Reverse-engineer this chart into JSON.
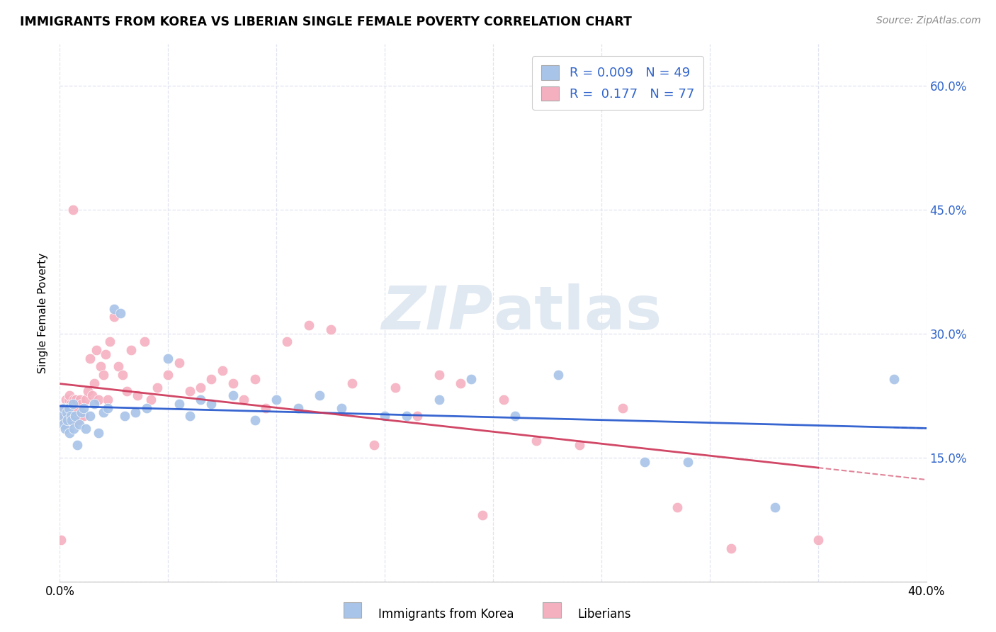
{
  "title": "IMMIGRANTS FROM KOREA VS LIBERIAN SINGLE FEMALE POVERTY CORRELATION CHART",
  "source": "Source: ZipAtlas.com",
  "ylabel": "Single Female Poverty",
  "legend_label_korea": "Immigrants from Korea",
  "legend_label_liberia": "Liberians",
  "korea_R": "0.009",
  "korea_N": "49",
  "liberia_R": "0.177",
  "liberia_N": "77",
  "korea_color": "#a8c4e8",
  "liberia_color": "#f5b0c0",
  "korea_trend_color": "#2255cc",
  "liberia_trend_color": "#cc3355",
  "liberia_trend_dashed_color": "#ddaacc",
  "watermark_color": "#c8d8e8",
  "xlim": [
    0.0,
    40.0
  ],
  "ylim": [
    0.0,
    65.0
  ],
  "yticks": [
    0,
    15,
    30,
    45,
    60
  ],
  "grid_color": "#e0e4f0",
  "background_color": "#ffffff",
  "korea_x": [
    0.1,
    0.15,
    0.2,
    0.25,
    0.3,
    0.35,
    0.4,
    0.45,
    0.5,
    0.55,
    0.6,
    0.65,
    0.7,
    0.8,
    0.9,
    1.0,
    1.1,
    1.2,
    1.4,
    1.6,
    1.8,
    2.0,
    2.2,
    2.5,
    2.8,
    3.0,
    3.5,
    4.0,
    5.0,
    5.5,
    6.0,
    6.5,
    7.0,
    8.0,
    9.0,
    10.0,
    11.0,
    12.0,
    13.0,
    15.0,
    16.0,
    17.5,
    19.0,
    21.0,
    23.0,
    27.0,
    29.0,
    33.0,
    38.5
  ],
  "korea_y": [
    20.0,
    19.0,
    21.0,
    18.5,
    20.5,
    19.5,
    21.0,
    18.0,
    20.0,
    19.5,
    21.5,
    18.5,
    20.0,
    16.5,
    19.0,
    20.5,
    21.0,
    18.5,
    20.0,
    21.5,
    18.0,
    20.5,
    21.0,
    33.0,
    32.5,
    20.0,
    20.5,
    21.0,
    27.0,
    21.5,
    20.0,
    22.0,
    21.5,
    22.5,
    19.5,
    22.0,
    21.0,
    22.5,
    21.0,
    20.0,
    20.0,
    22.0,
    24.5,
    20.0,
    25.0,
    14.5,
    14.5,
    9.0,
    24.5
  ],
  "liberia_x": [
    0.05,
    0.1,
    0.12,
    0.15,
    0.18,
    0.2,
    0.22,
    0.25,
    0.28,
    0.3,
    0.32,
    0.35,
    0.38,
    0.4,
    0.42,
    0.45,
    0.48,
    0.5,
    0.55,
    0.6,
    0.65,
    0.7,
    0.75,
    0.8,
    0.85,
    0.9,
    0.95,
    1.0,
    1.1,
    1.2,
    1.3,
    1.4,
    1.5,
    1.6,
    1.7,
    1.8,
    1.9,
    2.0,
    2.1,
    2.2,
    2.3,
    2.5,
    2.7,
    2.9,
    3.1,
    3.3,
    3.6,
    3.9,
    4.2,
    4.5,
    5.0,
    5.5,
    6.0,
    6.5,
    7.0,
    7.5,
    8.0,
    8.5,
    9.0,
    9.5,
    10.5,
    11.5,
    12.5,
    13.5,
    14.5,
    15.5,
    16.5,
    17.5,
    18.5,
    19.5,
    20.5,
    22.0,
    24.0,
    26.0,
    28.5,
    31.0,
    35.0
  ],
  "liberia_y": [
    5.0,
    20.0,
    21.0,
    19.5,
    20.5,
    21.0,
    20.0,
    19.5,
    22.0,
    20.5,
    21.0,
    19.0,
    20.5,
    22.0,
    21.0,
    22.5,
    20.0,
    21.5,
    20.0,
    45.0,
    22.0,
    20.5,
    22.0,
    21.0,
    19.5,
    20.0,
    22.0,
    21.5,
    20.0,
    22.0,
    23.0,
    27.0,
    22.5,
    24.0,
    28.0,
    22.0,
    26.0,
    25.0,
    27.5,
    22.0,
    29.0,
    32.0,
    26.0,
    25.0,
    23.0,
    28.0,
    22.5,
    29.0,
    22.0,
    23.5,
    25.0,
    26.5,
    23.0,
    23.5,
    24.5,
    25.5,
    24.0,
    22.0,
    24.5,
    21.0,
    29.0,
    31.0,
    30.5,
    24.0,
    16.5,
    23.5,
    20.0,
    25.0,
    24.0,
    8.0,
    22.0,
    17.0,
    16.5,
    21.0,
    9.0,
    4.0,
    5.0
  ]
}
